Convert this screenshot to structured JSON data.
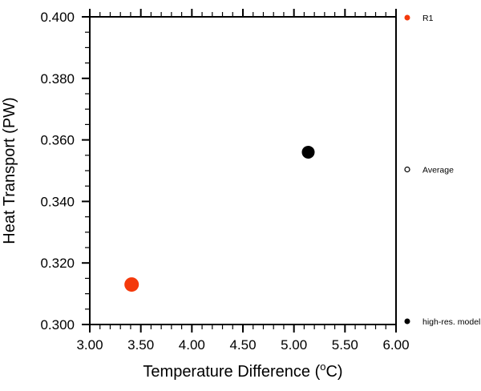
{
  "chart_data": {
    "type": "scatter",
    "title": "",
    "xlabel": {
      "prefix": "Temperature Difference (",
      "sup": "o",
      "suffix": "C)"
    },
    "ylabel": "Heat Transport (PW)",
    "xlim": [
      3.0,
      6.0
    ],
    "ylim": [
      0.3,
      0.4
    ],
    "x_major_tick_step": 0.5,
    "x_minor_tick_step": 0.1,
    "y_major_tick_step": 0.02,
    "y_minor_tick_step": 0.005,
    "x_tick_decimals": 2,
    "y_tick_decimals": 3,
    "x_tick_labels": [
      "3.00",
      "3.50",
      "4.00",
      "4.50",
      "5.00",
      "5.50",
      "6.00"
    ],
    "y_tick_labels": [
      "0.300",
      "0.320",
      "0.340",
      "0.360",
      "0.380",
      "0.400"
    ],
    "grid": false,
    "background_color": "#ffffff",
    "axis_color": "#000000",
    "series": [
      {
        "name": "R1",
        "marker": "filled-circle",
        "color": "#f4390b",
        "marker_radius": 9,
        "points": [
          {
            "x": 3.41,
            "y": 0.313
          }
        ]
      },
      {
        "name": "high-res. model",
        "marker": "filled-circle",
        "color": "#000000",
        "marker_radius": 8,
        "points": [
          {
            "x": 5.14,
            "y": 0.356
          }
        ]
      }
    ],
    "legend": {
      "position": "right-outside",
      "entries": [
        {
          "label": "R1",
          "marker": "filled-circle",
          "color": "#f4390b"
        },
        {
          "label": "Average",
          "marker": "open-circle",
          "color": "#000000"
        },
        {
          "label": "high-res. model",
          "marker": "filled-circle",
          "color": "#000000"
        }
      ]
    }
  }
}
